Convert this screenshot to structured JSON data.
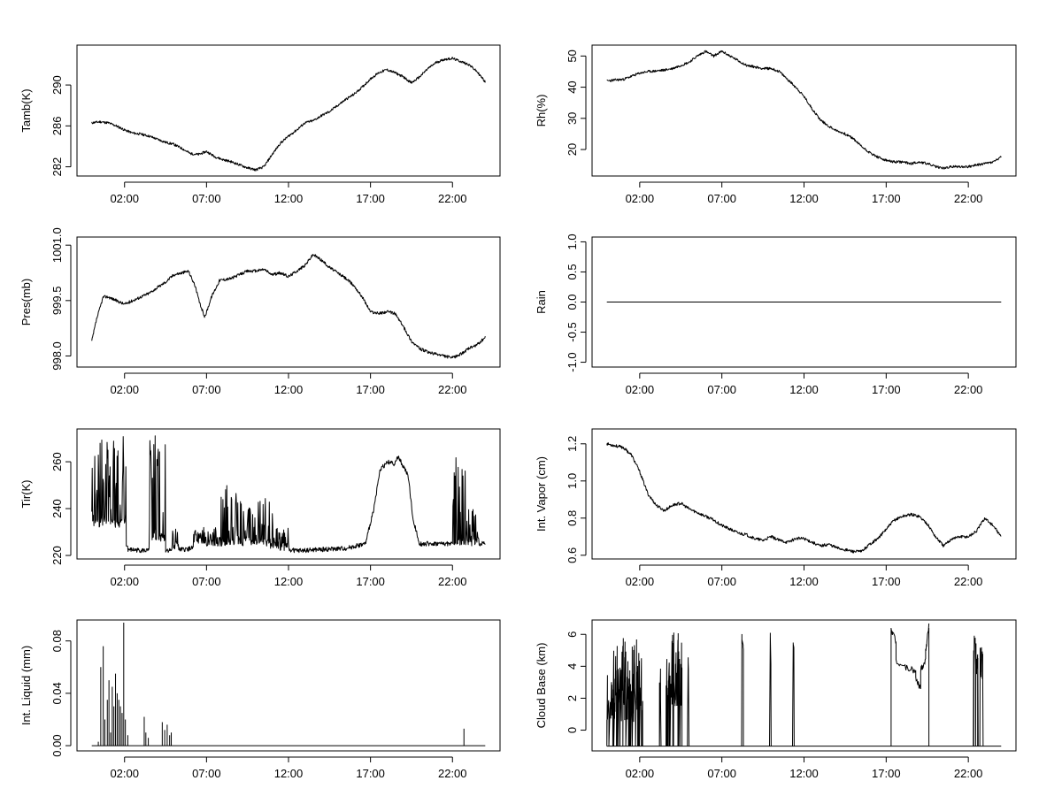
{
  "chart_data": [
    {
      "type": "line",
      "ylabel": "Tamb(K)",
      "x_tick_labels": [
        "02:00",
        "07:00",
        "12:00",
        "17:00",
        "22:00"
      ],
      "x_ticks_hours": [
        2,
        7,
        12,
        17,
        22
      ],
      "xlim_hours": [
        -0.9,
        24.9
      ],
      "yticks": [
        282,
        286,
        290
      ],
      "ylim": [
        281.1,
        293.9
      ],
      "x_hours": [
        0,
        0.5,
        1,
        1.5,
        2,
        2.5,
        3,
        3.5,
        4,
        4.5,
        5,
        5.5,
        6,
        6.5,
        7,
        7.5,
        8,
        8.5,
        9,
        9.5,
        10,
        10.5,
        11,
        11.5,
        12,
        12.5,
        13,
        13.5,
        14,
        14.5,
        15,
        15.5,
        16,
        16.5,
        17,
        17.5,
        18,
        18.5,
        19,
        19.5,
        20,
        20.5,
        21,
        21.5,
        22,
        22.5,
        23,
        23.5,
        24
      ],
      "y": [
        286.3,
        286.4,
        286.3,
        286.0,
        285.6,
        285.3,
        285.2,
        285.0,
        284.7,
        284.4,
        284.2,
        283.8,
        283.3,
        283.2,
        283.5,
        283.0,
        282.7,
        282.5,
        282.2,
        281.9,
        281.7,
        282.0,
        283.2,
        284.3,
        285.0,
        285.6,
        286.3,
        286.5,
        287.0,
        287.4,
        288.0,
        288.6,
        289.1,
        289.8,
        290.6,
        291.2,
        291.5,
        291.2,
        290.8,
        290.2,
        290.8,
        291.6,
        292.2,
        292.5,
        292.6,
        292.3,
        292.0,
        291.3,
        290.3
      ],
      "noise": 0.12,
      "seed": 11
    },
    {
      "type": "line",
      "ylabel": "Rh(%)",
      "x_tick_labels": [
        "02:00",
        "07:00",
        "12:00",
        "17:00",
        "22:00"
      ],
      "x_ticks_hours": [
        2,
        7,
        12,
        17,
        22
      ],
      "xlim_hours": [
        -0.9,
        24.9
      ],
      "yticks": [
        20,
        30,
        40,
        50
      ],
      "ylim": [
        11.5,
        53.5
      ],
      "x_hours": [
        0,
        0.5,
        1,
        1.5,
        2,
        2.5,
        3,
        3.5,
        4,
        4.5,
        5,
        5.5,
        6,
        6.5,
        7,
        7.5,
        8,
        8.5,
        9,
        9.5,
        10,
        10.5,
        11,
        11.5,
        12,
        12.5,
        13,
        13.5,
        14,
        14.5,
        15,
        15.5,
        16,
        16.5,
        17,
        17.5,
        18,
        18.5,
        19,
        19.5,
        20,
        20.5,
        21,
        21.5,
        22,
        22.5,
        23,
        23.5,
        24
      ],
      "y": [
        42,
        42.3,
        42.5,
        43.5,
        44.5,
        45,
        45.2,
        45.5,
        46,
        47,
        48,
        50,
        51.5,
        50,
        51.5,
        50,
        48.5,
        47,
        46.5,
        46,
        46,
        45,
        42.5,
        40,
        37,
        33,
        29.5,
        27.5,
        26,
        25,
        23.5,
        21,
        19,
        17.5,
        16.5,
        16,
        16,
        15.5,
        16,
        15.5,
        14.5,
        14,
        14.5,
        14.5,
        14.5,
        15,
        15.5,
        16,
        17.5
      ],
      "noise": 0.4,
      "seed": 23
    },
    {
      "type": "line",
      "ylabel": "Pres(mb)",
      "x_tick_labels": [
        "02:00",
        "07:00",
        "12:00",
        "17:00",
        "22:00"
      ],
      "x_ticks_hours": [
        2,
        7,
        12,
        17,
        22
      ],
      "xlim_hours": [
        -0.9,
        24.9
      ],
      "yticks": [
        998.0,
        999.5,
        1001.0
      ],
      "ytick_labels": [
        "998.0",
        "999.5",
        "1001.0"
      ],
      "ylim": [
        997.7,
        1001.22
      ],
      "x_hours": [
        0,
        0.3,
        0.7,
        1,
        1.5,
        2,
        2.5,
        3,
        3.5,
        4,
        4.5,
        5,
        5.5,
        5.9,
        6.3,
        6.6,
        6.9,
        7.3,
        7.8,
        8.5,
        9,
        9.5,
        10,
        10.5,
        11,
        11.5,
        12,
        12.5,
        13,
        13.5,
        14,
        14.5,
        15,
        15.5,
        16,
        16.5,
        17,
        17.5,
        18,
        18.5,
        19,
        19.5,
        20,
        20.5,
        21,
        21.5,
        22,
        22.5,
        23,
        23.5,
        24
      ],
      "y": [
        998.4,
        999.0,
        999.6,
        999.6,
        999.5,
        999.4,
        999.5,
        999.6,
        999.7,
        999.85,
        1000.0,
        1000.2,
        1000.25,
        1000.3,
        999.9,
        999.4,
        999.05,
        999.6,
        1000.05,
        1000.1,
        1000.2,
        1000.3,
        1000.3,
        1000.35,
        1000.2,
        1000.25,
        1000.15,
        1000.3,
        1000.45,
        1000.75,
        1000.6,
        1000.4,
        1000.25,
        1000.1,
        999.9,
        999.6,
        999.2,
        999.15,
        999.2,
        999.15,
        998.8,
        998.4,
        998.2,
        998.1,
        998.05,
        998.0,
        997.95,
        998.05,
        998.2,
        998.3,
        998.5
      ],
      "noise": 0.04,
      "seed": 37
    },
    {
      "type": "line",
      "ylabel": "Rain",
      "x_tick_labels": [
        "02:00",
        "07:00",
        "12:00",
        "17:00",
        "22:00"
      ],
      "x_ticks_hours": [
        2,
        7,
        12,
        17,
        22
      ],
      "xlim_hours": [
        -0.9,
        24.9
      ],
      "yticks": [
        -1.0,
        -0.5,
        0.0,
        0.5,
        1.0
      ],
      "ytick_labels": [
        "-1.0",
        "-0.5",
        "0.0",
        "0.5",
        "1.0"
      ],
      "ylim": [
        -1.08,
        1.08
      ],
      "x_hours": [
        0,
        24
      ],
      "y": [
        0,
        0
      ],
      "noise": 0,
      "seed": 0
    },
    {
      "type": "line",
      "ylabel": "Tir(K)",
      "x_tick_labels": [
        "02:00",
        "07:00",
        "12:00",
        "17:00",
        "22:00"
      ],
      "x_ticks_hours": [
        2,
        7,
        12,
        17,
        22
      ],
      "xlim_hours": [
        -0.9,
        24.9
      ],
      "yticks": [
        220,
        240,
        260
      ],
      "ylim": [
        218.5,
        274
      ],
      "x_hours": [
        2.2,
        3.5,
        5.6,
        6.5,
        7.5,
        8.4,
        9.4,
        10.4,
        11.5,
        12.5,
        14,
        15.5,
        16.7,
        17.2,
        17.6,
        18.1,
        18.4,
        18.7,
        19,
        19.3,
        19.6,
        20,
        21,
        22.5
      ],
      "y": [
        222.5,
        222,
        222.5,
        223.5,
        223,
        225,
        224,
        226,
        223,
        222,
        222.5,
        223,
        225,
        240,
        257,
        260,
        259,
        262,
        258,
        254,
        235,
        225,
        225,
        225
      ],
      "noise": 1.0,
      "seed": 41,
      "spike_windows": [
        [
          0,
          2.1,
          232,
          273
        ],
        [
          3.5,
          4.5,
          226,
          272
        ],
        [
          4.9,
          5.3,
          222,
          233
        ],
        [
          6.2,
          7.8,
          224,
          232
        ],
        [
          7.7,
          8.6,
          224,
          250
        ],
        [
          8.6,
          10.6,
          224,
          247
        ],
        [
          10.4,
          11.2,
          223,
          243
        ],
        [
          11.2,
          12.0,
          222,
          232
        ],
        [
          22.0,
          22.8,
          224,
          262
        ],
        [
          22.8,
          23.6,
          224,
          240
        ]
      ]
    },
    {
      "type": "line",
      "ylabel": "Int. Vapor (cm)",
      "x_tick_labels": [
        "02:00",
        "07:00",
        "12:00",
        "17:00",
        "22:00"
      ],
      "x_ticks_hours": [
        2,
        7,
        12,
        17,
        22
      ],
      "xlim_hours": [
        -0.9,
        24.9
      ],
      "yticks": [
        0.6,
        0.8,
        1.0,
        1.2
      ],
      "ytick_labels": [
        "0.6",
        "0.8",
        "1.0",
        "1.2"
      ],
      "ylim": [
        0.58,
        1.28
      ],
      "x_hours": [
        0,
        0.5,
        1,
        1.5,
        2,
        2.5,
        3,
        3.5,
        4,
        4.5,
        5,
        5.5,
        6,
        6.5,
        7,
        7.5,
        8,
        8.5,
        9,
        9.5,
        10,
        10.5,
        11,
        11.5,
        12,
        12.5,
        13,
        13.5,
        14,
        14.5,
        15,
        15.5,
        16,
        16.5,
        17,
        17.5,
        18,
        18.5,
        19,
        19.5,
        20,
        20.5,
        21,
        21.5,
        22,
        22.5,
        23,
        23.5,
        24
      ],
      "y": [
        1.2,
        1.19,
        1.18,
        1.14,
        1.05,
        0.93,
        0.87,
        0.84,
        0.87,
        0.88,
        0.85,
        0.83,
        0.81,
        0.79,
        0.76,
        0.74,
        0.72,
        0.71,
        0.69,
        0.68,
        0.7,
        0.68,
        0.67,
        0.69,
        0.69,
        0.67,
        0.65,
        0.66,
        0.64,
        0.63,
        0.62,
        0.62,
        0.66,
        0.69,
        0.74,
        0.79,
        0.81,
        0.82,
        0.81,
        0.77,
        0.7,
        0.65,
        0.69,
        0.7,
        0.7,
        0.73,
        0.8,
        0.76,
        0.7
      ],
      "noise": 0.008,
      "seed": 53
    },
    {
      "type": "line",
      "ylabel": "Int. Liquid (mm)",
      "x_tick_labels": [
        "02:00",
        "07:00",
        "12:00",
        "17:00",
        "22:00"
      ],
      "x_ticks_hours": [
        2,
        7,
        12,
        17,
        22
      ],
      "xlim_hours": [
        -0.9,
        24.9
      ],
      "yticks": [
        0.0,
        0.04,
        0.08
      ],
      "ytick_labels": [
        "0.00",
        "0.04",
        "0.08"
      ],
      "ylim": [
        -0.004,
        0.096
      ],
      "x_hours": [
        0,
        24
      ],
      "y": [
        0,
        0
      ],
      "noise": 0,
      "seed": 0,
      "spikes": [
        [
          0.4,
          0.003
        ],
        [
          0.55,
          0.06
        ],
        [
          0.7,
          0.076
        ],
        [
          0.8,
          0.02
        ],
        [
          0.95,
          0.035
        ],
        [
          1.05,
          0.05
        ],
        [
          1.15,
          0.01
        ],
        [
          1.25,
          0.045
        ],
        [
          1.35,
          0.03
        ],
        [
          1.45,
          0.055
        ],
        [
          1.55,
          0.04
        ],
        [
          1.65,
          0.035
        ],
        [
          1.75,
          0.03
        ],
        [
          1.85,
          0.025
        ],
        [
          1.95,
          0.094
        ],
        [
          2.05,
          0.02
        ],
        [
          2.2,
          0.008
        ],
        [
          3.2,
          0.022
        ],
        [
          3.3,
          0.01
        ],
        [
          3.45,
          0.006
        ],
        [
          4.3,
          0.018
        ],
        [
          4.45,
          0.012
        ],
        [
          4.6,
          0.016
        ],
        [
          4.75,
          0.008
        ],
        [
          4.85,
          0.01
        ],
        [
          22.7,
          0.013
        ]
      ]
    },
    {
      "type": "line",
      "ylabel": "Cloud Base (km)",
      "x_tick_labels": [
        "02:00",
        "07:00",
        "12:00",
        "17:00",
        "22:00"
      ],
      "x_ticks_hours": [
        2,
        7,
        12,
        17,
        22
      ],
      "xlim_hours": [
        -0.9,
        24.9
      ],
      "yticks": [
        0,
        2,
        4,
        6
      ],
      "ylim": [
        -1.3,
        6.9
      ],
      "x_hours": [
        0,
        24
      ],
      "y": [
        -1,
        -1
      ],
      "noise": 0,
      "seed": 71,
      "blocks": [
        [
          0,
          2.2,
          0.5,
          5.8,
          60
        ],
        [
          3.2,
          3.3,
          1.5,
          4.5,
          3
        ],
        [
          3.6,
          4.6,
          1.5,
          6.2,
          30
        ],
        [
          4.9,
          5.0,
          3.5,
          5.5,
          2
        ],
        [
          8.2,
          8.35,
          5.0,
          6.3,
          3
        ],
        [
          9.9,
          10.0,
          2.0,
          6.1,
          2
        ],
        [
          11.3,
          11.4,
          5.0,
          6.3,
          2
        ],
        [
          22.3,
          22.6,
          3.5,
          6.1,
          10
        ],
        [
          22.7,
          22.9,
          3.0,
          6.1,
          8
        ]
      ],
      "segments": [
        [
          17.3,
          17.6,
          6.3,
          5.5
        ],
        [
          17.6,
          18.2,
          4.3,
          3.9
        ],
        [
          18.2,
          18.8,
          3.9,
          3.7
        ],
        [
          18.8,
          19.1,
          3.2,
          2.6
        ],
        [
          19.1,
          19.4,
          3.8,
          4.4
        ],
        [
          19.4,
          19.6,
          5.0,
          6.5
        ]
      ],
      "drops": [
        17.3,
        19.6
      ]
    }
  ]
}
